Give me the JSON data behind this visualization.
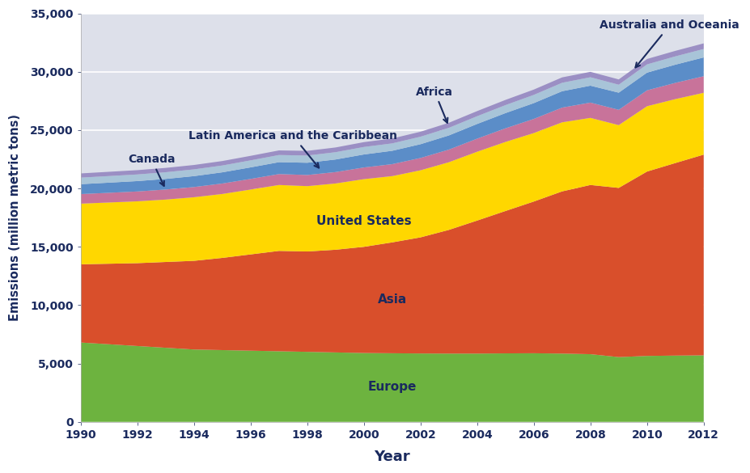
{
  "years": [
    1990,
    1991,
    1992,
    1993,
    1994,
    1995,
    1996,
    1997,
    1998,
    1999,
    2000,
    2001,
    2002,
    2003,
    2004,
    2005,
    2006,
    2007,
    2008,
    2009,
    2010,
    2011,
    2012
  ],
  "europe": [
    6800,
    6650,
    6500,
    6350,
    6200,
    6150,
    6100,
    6050,
    6000,
    5950,
    5900,
    5880,
    5860,
    5850,
    5850,
    5870,
    5880,
    5850,
    5800,
    5550,
    5650,
    5680,
    5700
  ],
  "asia": [
    6700,
    6900,
    7100,
    7350,
    7600,
    7900,
    8250,
    8600,
    8600,
    8800,
    9100,
    9500,
    9950,
    10600,
    11400,
    12200,
    13000,
    13900,
    14500,
    14500,
    15800,
    16500,
    17200
  ],
  "united_states": [
    5200,
    5250,
    5300,
    5350,
    5450,
    5480,
    5560,
    5650,
    5600,
    5680,
    5800,
    5680,
    5750,
    5800,
    5900,
    5920,
    5870,
    5920,
    5750,
    5380,
    5600,
    5480,
    5300
  ],
  "latin_america": [
    820,
    830,
    845,
    860,
    875,
    895,
    910,
    935,
    955,
    975,
    1000,
    1025,
    1055,
    1080,
    1120,
    1165,
    1210,
    1260,
    1310,
    1310,
    1360,
    1390,
    1420
  ],
  "africa": [
    850,
    870,
    890,
    910,
    935,
    960,
    990,
    1020,
    1050,
    1080,
    1115,
    1145,
    1180,
    1215,
    1260,
    1305,
    1355,
    1405,
    1450,
    1470,
    1520,
    1560,
    1610
  ],
  "canada": [
    560,
    565,
    568,
    572,
    578,
    585,
    600,
    612,
    618,
    624,
    642,
    634,
    643,
    652,
    664,
    684,
    705,
    722,
    722,
    682,
    703,
    712,
    722
  ],
  "australia": [
    360,
    365,
    368,
    372,
    376,
    382,
    388,
    395,
    400,
    406,
    415,
    420,
    426,
    432,
    438,
    446,
    455,
    463,
    463,
    453,
    463,
    472,
    482
  ],
  "colors": {
    "europe": "#6db33f",
    "asia": "#d94f2b",
    "united_states": "#ffd700",
    "latin_america": "#c8739a",
    "africa": "#5b8dc8",
    "canada": "#a8c4d8",
    "australia": "#9b8fc4"
  },
  "background_color": "#dde0ea",
  "ylabel": "Emissions (million metric tons)",
  "xlabel": "Year",
  "ylim": [
    0,
    35000
  ],
  "yticks": [
    0,
    5000,
    10000,
    15000,
    20000,
    25000,
    30000,
    35000
  ],
  "xticks": [
    1990,
    1992,
    1994,
    1996,
    1998,
    2000,
    2002,
    2004,
    2006,
    2008,
    2010,
    2012
  ]
}
